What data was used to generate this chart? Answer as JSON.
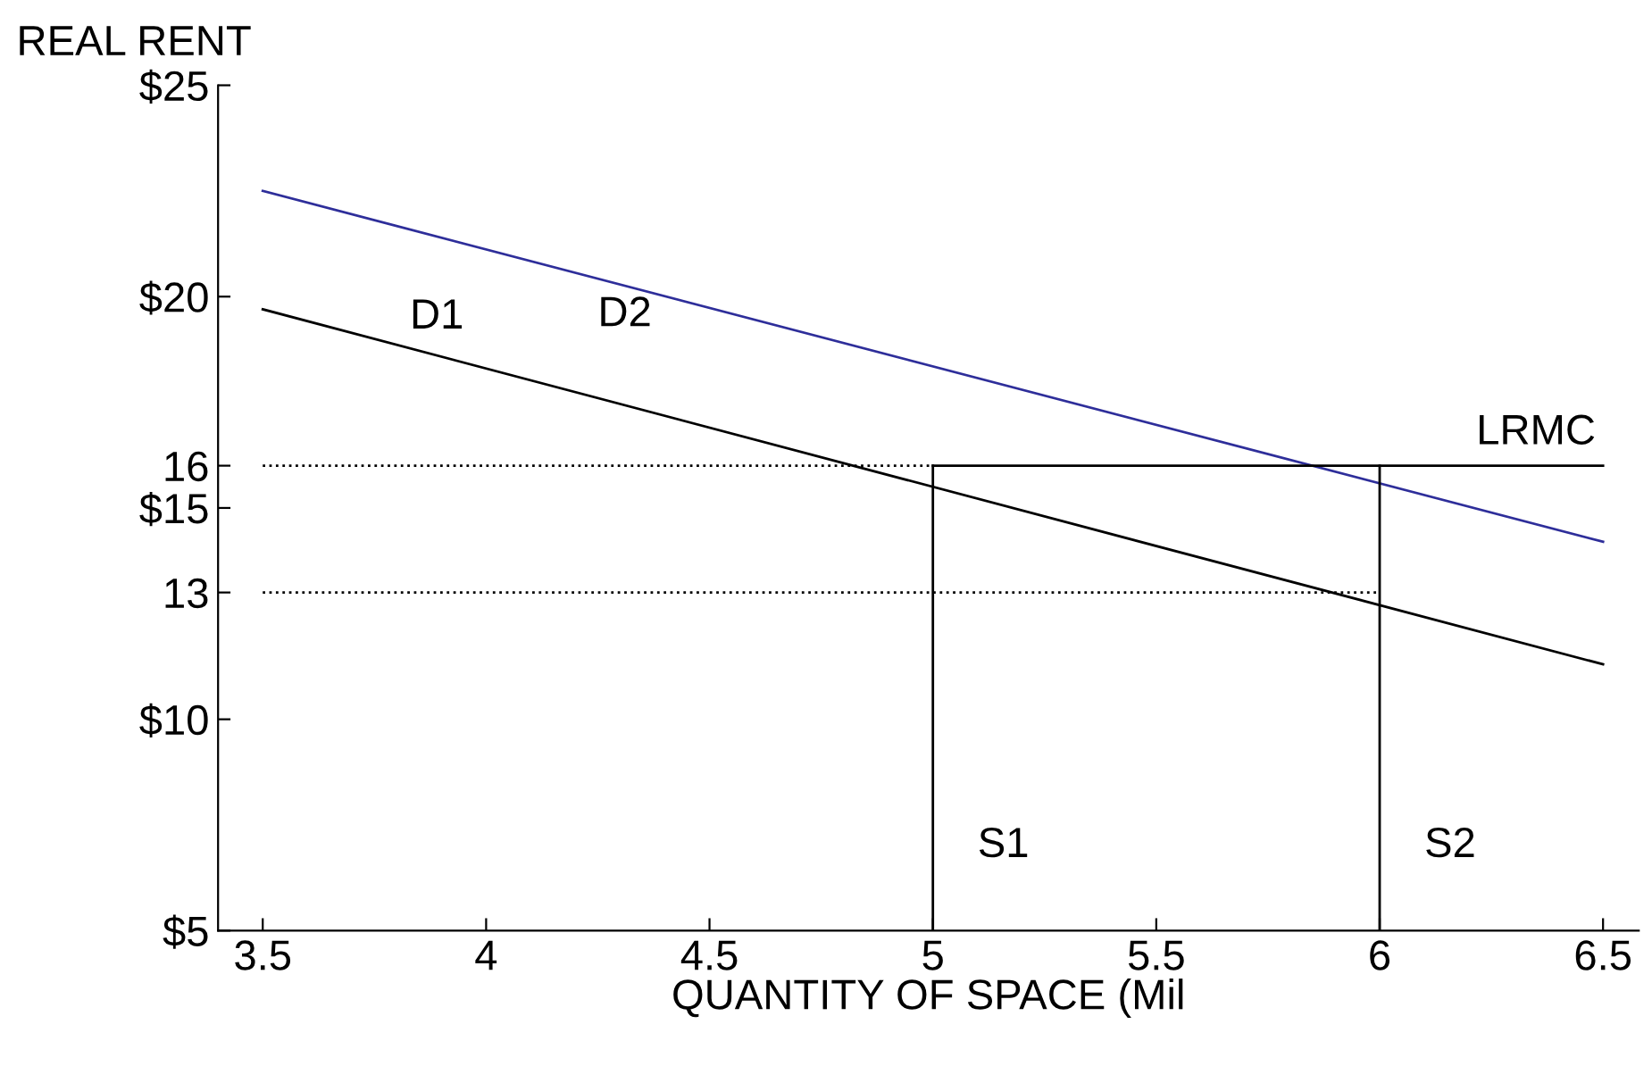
{
  "chart_data": {
    "type": "line",
    "ylabel": "REAL RENT",
    "xlabel": "QUANTITY OF SPACE (Mil",
    "xlim": [
      3.4,
      6.58
    ],
    "ylim": [
      5,
      25
    ],
    "xticks": [
      {
        "value": 3.5,
        "label": "3.5"
      },
      {
        "value": 4,
        "label": "4"
      },
      {
        "value": 4.5,
        "label": "4.5"
      },
      {
        "value": 5,
        "label": "5"
      },
      {
        "value": 5.5,
        "label": "5.5"
      },
      {
        "value": 6,
        "label": "6"
      },
      {
        "value": 6.5,
        "label": "6.5"
      }
    ],
    "yticks": [
      {
        "value": 5,
        "label": "$5"
      },
      {
        "value": 10,
        "label": "$10"
      },
      {
        "value": 13,
        "label": "13"
      },
      {
        "value": 15,
        "label": "$15"
      },
      {
        "value": 16,
        "label": "16"
      },
      {
        "value": 20,
        "label": "$20"
      },
      {
        "value": 25,
        "label": "$25"
      }
    ],
    "series": [
      {
        "name": "D1",
        "color": "#000000",
        "x": [
          3.5,
          6.5
        ],
        "values": [
          19.7,
          11.3
        ],
        "line_style": "solid"
      },
      {
        "name": "D2",
        "color": "#2e2e9a",
        "x": [
          3.5,
          6.5
        ],
        "values": [
          22.5,
          14.2
        ],
        "line_style": "solid"
      },
      {
        "name": "LRMC",
        "color": "#000000",
        "x": [
          5,
          6.5
        ],
        "values": [
          16,
          16
        ],
        "line_style": "solid"
      },
      {
        "color": "#000000",
        "x": [
          3.5,
          5
        ],
        "values": [
          16,
          16
        ],
        "line_style": "dotted"
      },
      {
        "color": "#000000",
        "x": [
          3.5,
          6
        ],
        "values": [
          13,
          13
        ],
        "line_style": "dotted"
      }
    ],
    "ref_lines": [
      {
        "axis": "x",
        "value": 5,
        "label": "S1",
        "color": "#000000"
      },
      {
        "axis": "x",
        "value": 6,
        "label": "S2",
        "color": "#000000"
      }
    ],
    "grid": false,
    "legend": false,
    "marker": "none"
  }
}
